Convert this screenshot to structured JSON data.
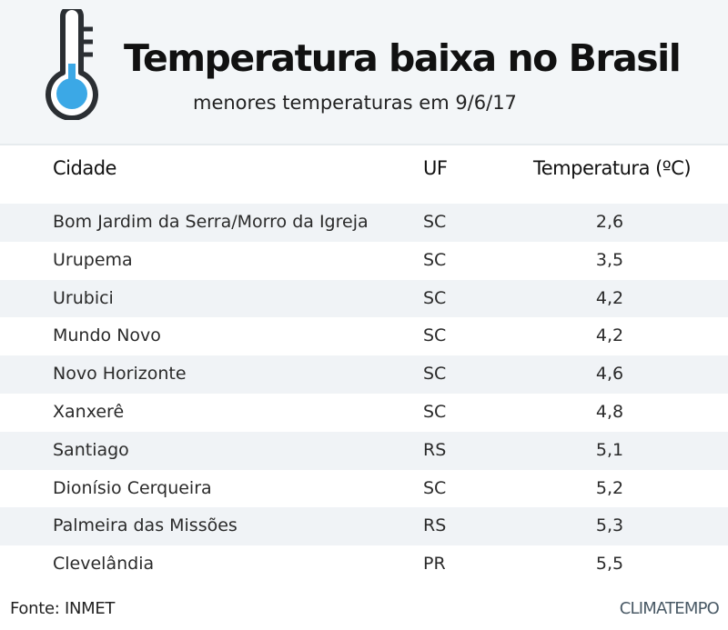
{
  "header": {
    "title": "Temperatura baixa no Brasil",
    "subtitle": "menores temperaturas em 9/6/17",
    "icon": "thermometer-icon"
  },
  "table": {
    "columns": [
      "Cidade",
      "UF",
      "Temperatura (ºC)"
    ],
    "rows": [
      {
        "city": "Bom Jardim da Serra/Morro da Igreja",
        "uf": "SC",
        "temp": "2,6"
      },
      {
        "city": "Urupema",
        "uf": "SC",
        "temp": "3,5"
      },
      {
        "city": "Urubici",
        "uf": "SC",
        "temp": "4,2"
      },
      {
        "city": "Mundo Novo",
        "uf": "SC",
        "temp": "4,2"
      },
      {
        "city": "Novo Horizonte",
        "uf": "SC",
        "temp": "4,6"
      },
      {
        "city": "Xanxerê",
        "uf": "SC",
        "temp": "4,8"
      },
      {
        "city": "Santiago",
        "uf": "RS",
        "temp": "5,1"
      },
      {
        "city": "Dionísio Cerqueira",
        "uf": "SC",
        "temp": "5,2"
      },
      {
        "city": "Palmeira das Missões",
        "uf": "RS",
        "temp": "5,3"
      },
      {
        "city": "Clevelândia",
        "uf": "PR",
        "temp": "5,5"
      }
    ]
  },
  "footer": {
    "source": "Fonte: INMET",
    "brand": "CLIMATEMPO"
  },
  "colors": {
    "header_bg": "#f3f6f8",
    "row_stripe": "#f0f3f6",
    "thermo_fill": "#3ba8e6",
    "thermo_outline": "#2b2f33"
  }
}
